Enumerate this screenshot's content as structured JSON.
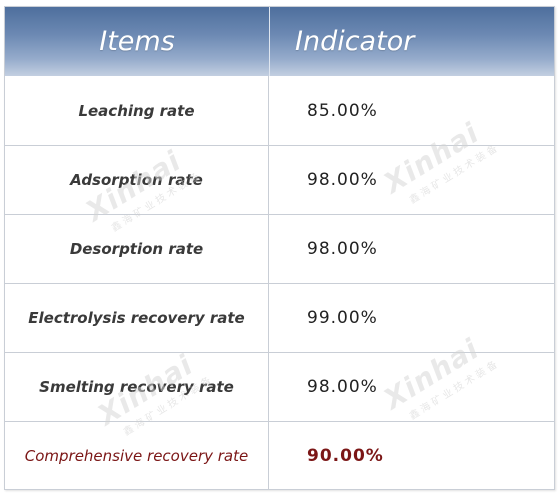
{
  "table": {
    "headers": {
      "items": "Items",
      "indicator": "Indicator"
    },
    "rows": [
      {
        "item": "Leaching rate",
        "value": "85.00%"
      },
      {
        "item": "Adsorption rate",
        "value": "98.00%"
      },
      {
        "item": "Desorption rate",
        "value": "98.00%"
      },
      {
        "item": "Electrolysis recovery rate",
        "value": "99.00%"
      },
      {
        "item": "Smelting recovery rate",
        "value": "98.00%"
      },
      {
        "item": "Comprehensive recovery rate",
        "value": "90.00%"
      }
    ]
  },
  "watermark": {
    "logo": "Xinhai",
    "subtitle": "鑫海矿业技术装备"
  },
  "colors": {
    "header_gradient_top": "#4e6f9d",
    "header_gradient_bottom": "#c3cfe1",
    "highlight_text": "#7b1616",
    "border": "#c9ced6"
  }
}
